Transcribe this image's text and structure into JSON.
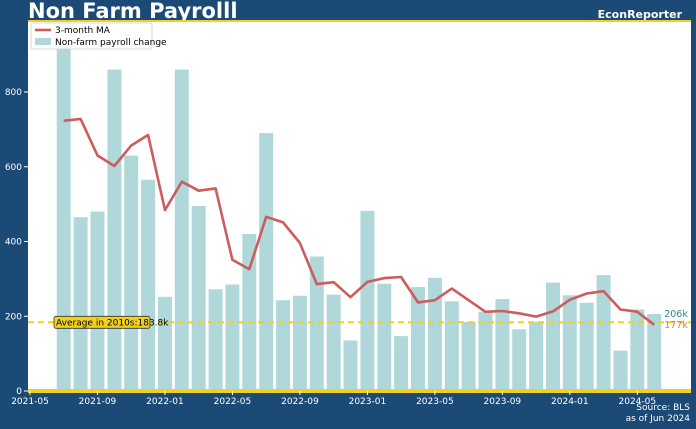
{
  "header": {
    "title": "Non Farm Payrolll",
    "brand": "EconReporter"
  },
  "footer": {
    "source": "Source: BLS",
    "asof": "as of Jun 2024"
  },
  "colors": {
    "background": "#1b4a76",
    "bar": "#b0d8da",
    "ma_line": "#cd5c5c",
    "average_line": "#f0d020",
    "frame": "#f0d020",
    "label_last_bar": "#2a8a96",
    "label_last_ma": "#e07850"
  },
  "chart_data": {
    "type": "bar",
    "title": "Non Farm Payrolll",
    "x_ticks": [
      "2021-05",
      "2021-09",
      "2022-01",
      "2022-05",
      "2022-09",
      "2023-01",
      "2023-05",
      "2023-09",
      "2024-01",
      "2024-05"
    ],
    "y_ticks": [
      0,
      200,
      400,
      600,
      800
    ],
    "ylim": [
      0,
      990
    ],
    "x": [
      "2021-07",
      "2021-08",
      "2021-09",
      "2021-10",
      "2021-11",
      "2021-12",
      "2022-01",
      "2022-02",
      "2022-03",
      "2022-04",
      "2022-05",
      "2022-06",
      "2022-07",
      "2022-08",
      "2022-09",
      "2022-10",
      "2022-11",
      "2022-12",
      "2023-01",
      "2023-02",
      "2023-03",
      "2023-04",
      "2023-05",
      "2023-06",
      "2023-07",
      "2023-08",
      "2023-09",
      "2023-10",
      "2023-11",
      "2023-12",
      "2024-01",
      "2024-02",
      "2024-03",
      "2024-04",
      "2024-05",
      "2024-06"
    ],
    "series": [
      {
        "name": "Non-farm payroll change",
        "kind": "bar",
        "values": [
          930,
          465,
          480,
          860,
          630,
          565,
          252,
          860,
          495,
          272,
          285,
          420,
          690,
          243,
          255,
          360,
          258,
          135,
          482,
          287,
          147,
          278,
          303,
          240,
          185,
          212,
          246,
          165,
          185,
          290,
          256,
          236,
          310,
          108,
          218,
          206
        ]
      },
      {
        "name": "3-month MA",
        "kind": "line",
        "values": [
          723,
          728,
          630,
          602,
          657,
          685,
          484,
          560,
          536,
          542,
          351,
          326,
          466,
          451,
          396,
          286,
          291,
          251,
          292,
          302,
          305,
          237,
          243,
          274,
          243,
          212,
          214,
          208,
          199,
          213,
          244,
          261,
          267,
          218,
          212,
          177
        ]
      }
    ],
    "average": {
      "value": 183.8,
      "label": "Average in 2010s:183.8k"
    },
    "end_labels": {
      "last_bar": "206k",
      "last_ma": "177k"
    },
    "legend": {
      "placement": "top-left"
    },
    "grid": false
  }
}
